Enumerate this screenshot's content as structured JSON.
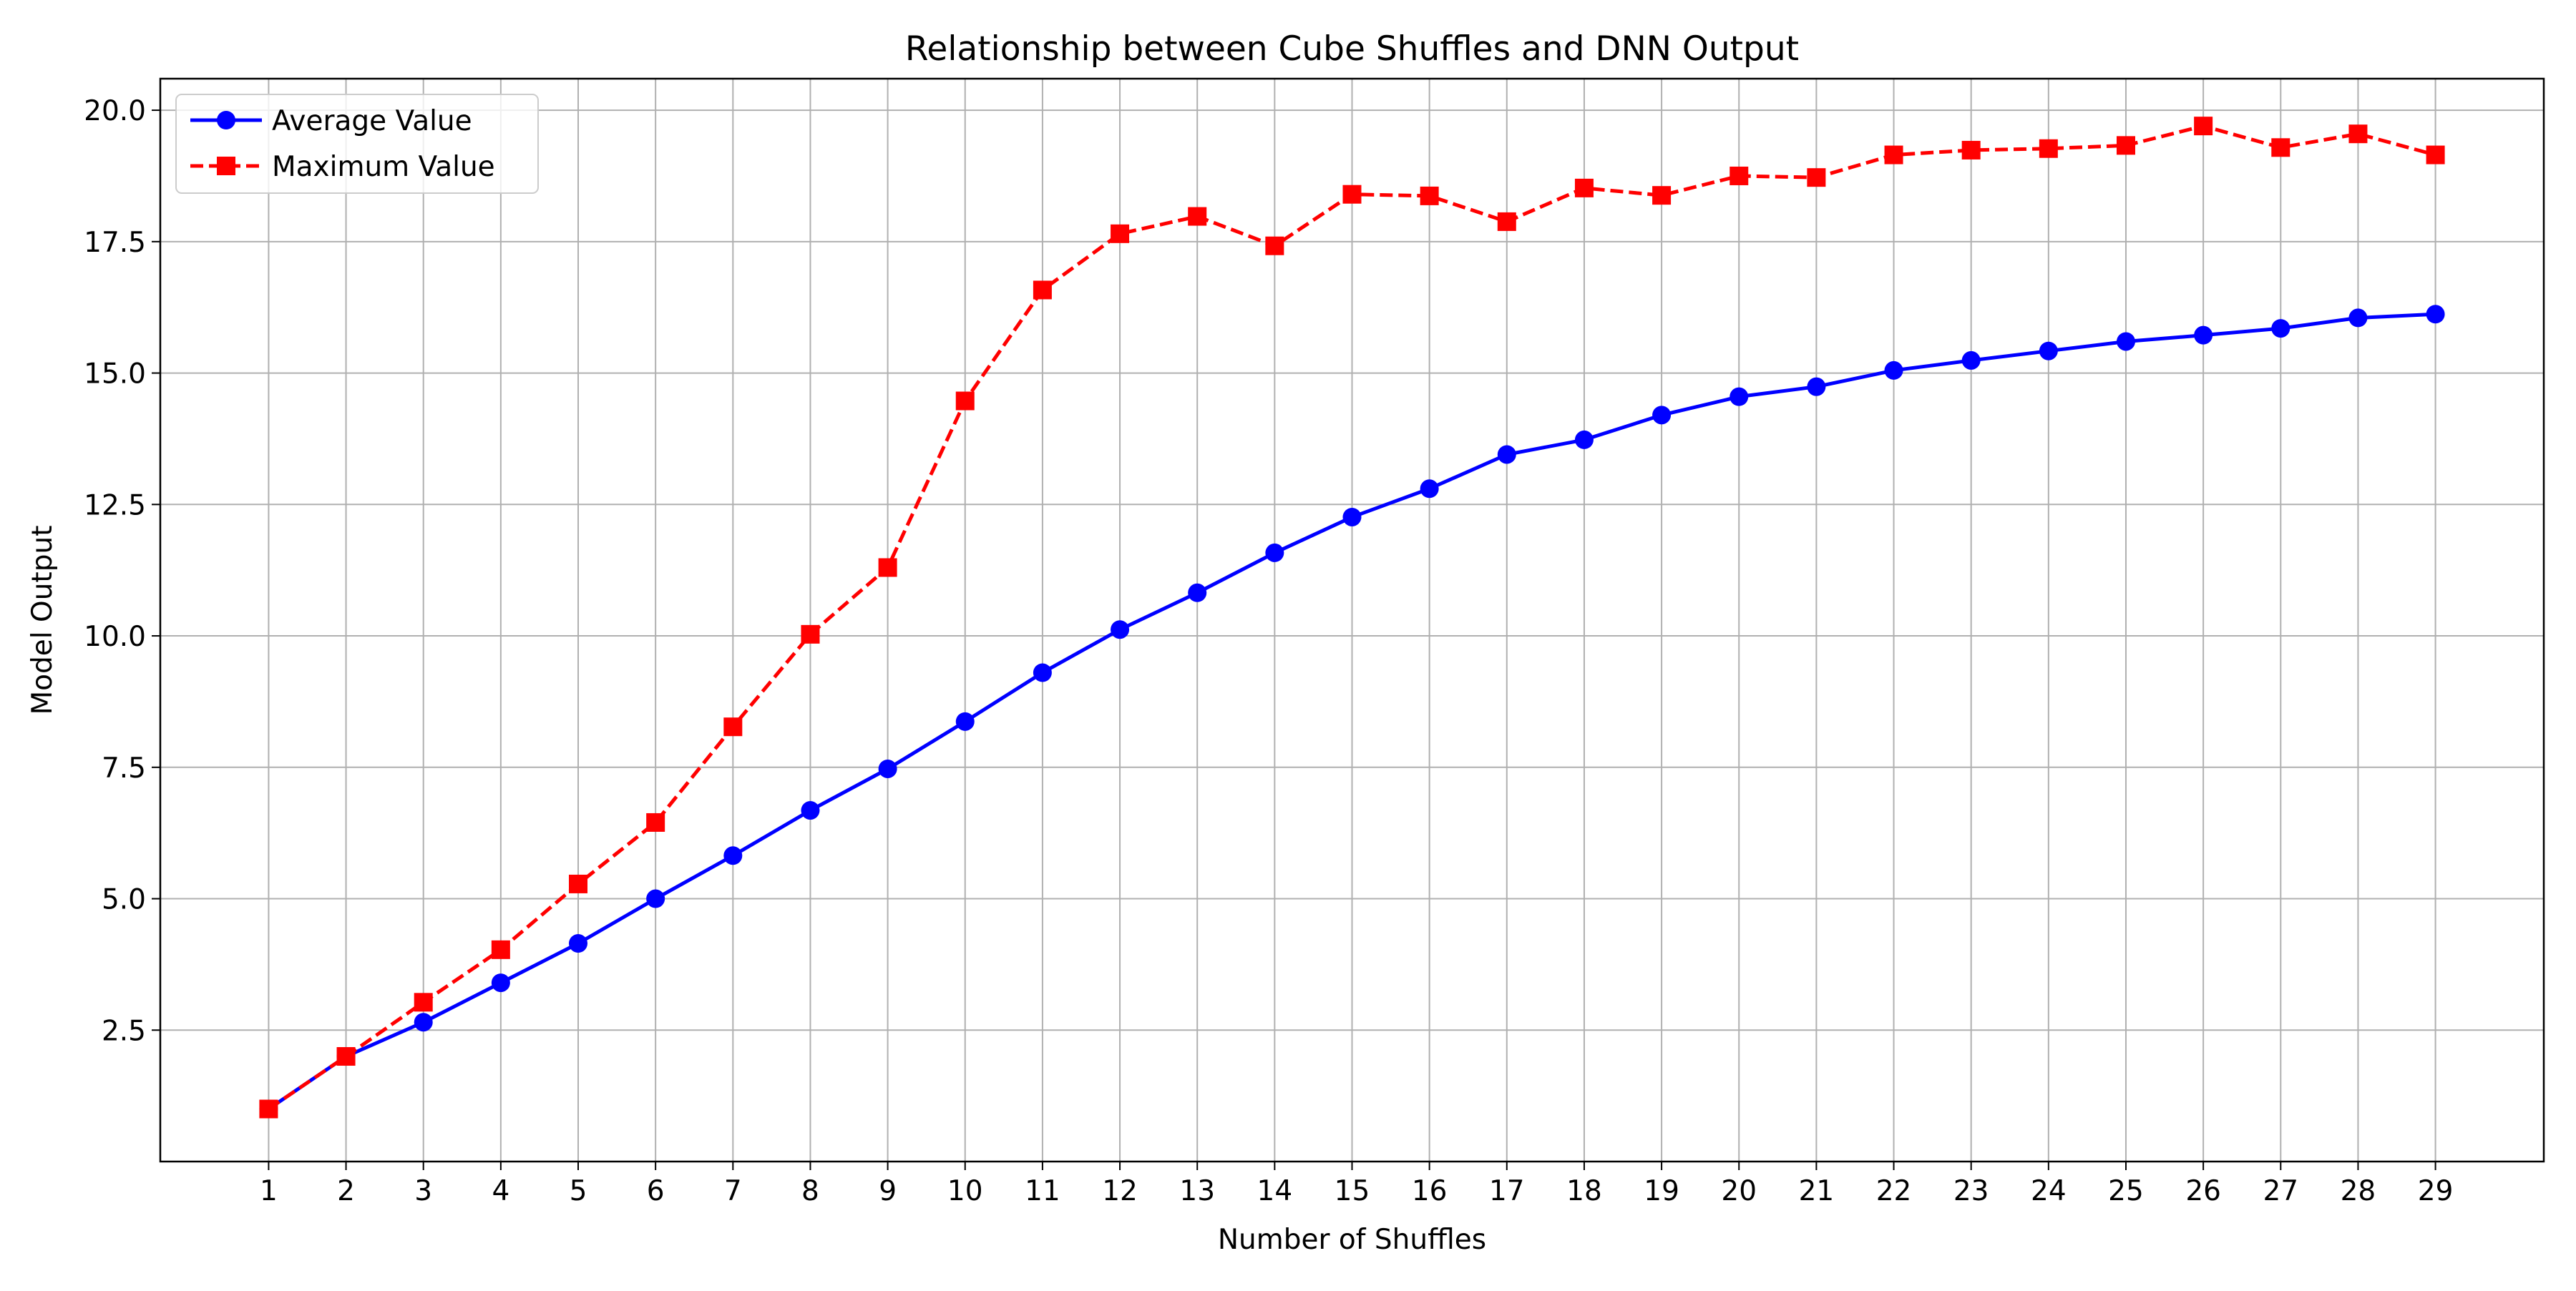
{
  "chart_data": {
    "type": "line",
    "title": "Relationship between Cube Shuffles and DNN Output",
    "xlabel": "Number of Shuffles",
    "ylabel": "Model Output",
    "x": [
      1,
      2,
      3,
      4,
      5,
      6,
      7,
      8,
      9,
      10,
      11,
      12,
      13,
      14,
      15,
      16,
      17,
      18,
      19,
      20,
      21,
      22,
      23,
      24,
      25,
      26,
      27,
      28,
      29
    ],
    "xlim": [
      -0.4,
      30.4
    ],
    "ylim": [
      0.0,
      20.6
    ],
    "yticks": [
      2.5,
      5.0,
      7.5,
      10.0,
      12.5,
      15.0,
      17.5,
      20.0
    ],
    "ytick_labels": [
      "2.5",
      "5.0",
      "7.5",
      "10.0",
      "12.5",
      "15.0",
      "17.5",
      "20.0"
    ],
    "xtick_labels": [
      "1",
      "2",
      "3",
      "4",
      "5",
      "6",
      "7",
      "8",
      "9",
      "10",
      "11",
      "12",
      "13",
      "14",
      "15",
      "16",
      "17",
      "18",
      "19",
      "20",
      "21",
      "22",
      "23",
      "24",
      "25",
      "26",
      "27",
      "28",
      "29"
    ],
    "grid": true,
    "legend_position": "upper-left",
    "series": [
      {
        "name": "Average Value",
        "color": "#0000ff",
        "line_style": "solid",
        "marker": "circle",
        "values": [
          1.0,
          2.0,
          2.65,
          3.4,
          4.15,
          5.0,
          5.82,
          6.68,
          7.47,
          8.37,
          9.3,
          10.12,
          10.82,
          11.58,
          12.26,
          12.8,
          13.45,
          13.73,
          14.2,
          14.55,
          14.74,
          15.05,
          15.24,
          15.42,
          15.6,
          15.72,
          15.85,
          16.05,
          16.12
        ]
      },
      {
        "name": "Maximum Value",
        "color": "#ff0000",
        "line_style": "dashed",
        "marker": "square",
        "values": [
          1.0,
          2.0,
          3.03,
          4.03,
          5.28,
          6.45,
          8.27,
          10.03,
          11.3,
          14.47,
          16.58,
          17.65,
          17.98,
          17.42,
          18.4,
          18.37,
          17.88,
          18.52,
          18.38,
          18.75,
          18.72,
          19.15,
          19.24,
          19.27,
          19.33,
          19.7,
          19.29,
          19.55,
          19.15
        ]
      }
    ]
  }
}
